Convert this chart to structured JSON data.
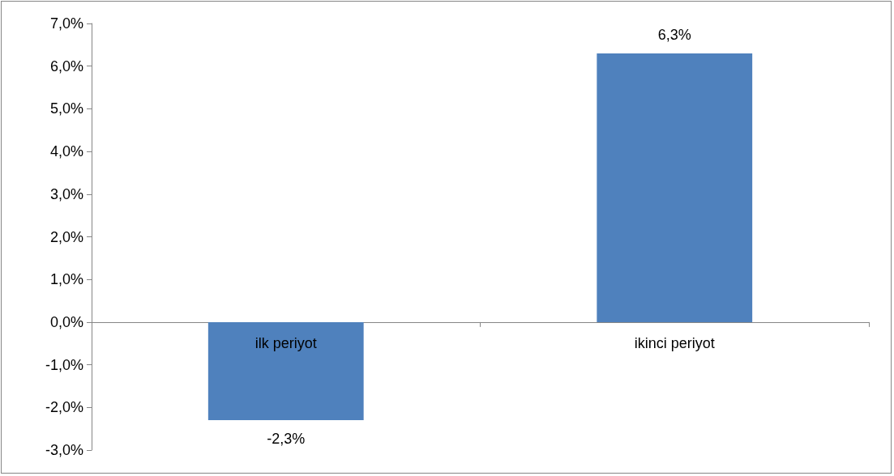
{
  "chart_data": {
    "type": "bar",
    "categories": [
      "ilk periyot",
      "ikinci periyot"
    ],
    "values": [
      -2.3,
      6.3
    ],
    "color": "#4f81bd",
    "value_labels": [
      "-2,3%",
      "6,3%"
    ],
    "ylim": [
      -3,
      7
    ],
    "yticks": [
      {
        "value": -3,
        "label": "-3,0%"
      },
      {
        "value": -2,
        "label": "-2,0%"
      },
      {
        "value": -1,
        "label": "-1,0%"
      },
      {
        "value": 0,
        "label": "0,0%"
      },
      {
        "value": 1,
        "label": "1,0%"
      },
      {
        "value": 2,
        "label": "2,0%"
      },
      {
        "value": 3,
        "label": "3,0%"
      },
      {
        "value": 4,
        "label": "4,0%"
      },
      {
        "value": 5,
        "label": "5,0%"
      },
      {
        "value": 6,
        "label": "6,0%"
      },
      {
        "value": 7,
        "label": "7,0%"
      }
    ],
    "grid": false
  }
}
